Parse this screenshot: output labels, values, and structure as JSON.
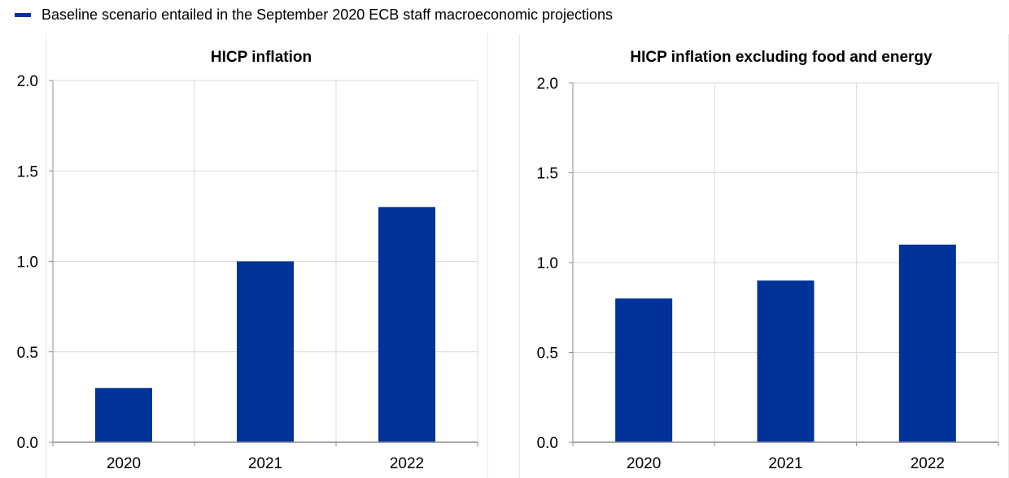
{
  "legend": {
    "label": "Baseline scenario entailed in the September 2020 ECB staff macroeconomic projections",
    "color": "#003299"
  },
  "chart_data": [
    {
      "type": "bar",
      "title": "HICP inflation",
      "categories": [
        "2020",
        "2021",
        "2022"
      ],
      "values": [
        0.3,
        1.0,
        1.3
      ],
      "ylim": [
        0,
        2.0
      ],
      "yticks": [
        "0.0",
        "0.5",
        "1.0",
        "1.5",
        "2.0"
      ],
      "grid": true,
      "legend_position": "top-left",
      "bar_color": "#003299"
    },
    {
      "type": "bar",
      "title": "HICP inflation excluding food and energy",
      "categories": [
        "2020",
        "2021",
        "2022"
      ],
      "values": [
        0.8,
        0.9,
        1.1
      ],
      "ylim": [
        0,
        2.0
      ],
      "yticks": [
        "0.0",
        "0.5",
        "1.0",
        "1.5",
        "2.0"
      ],
      "grid": true,
      "legend_position": "top-left",
      "bar_color": "#003299"
    }
  ]
}
